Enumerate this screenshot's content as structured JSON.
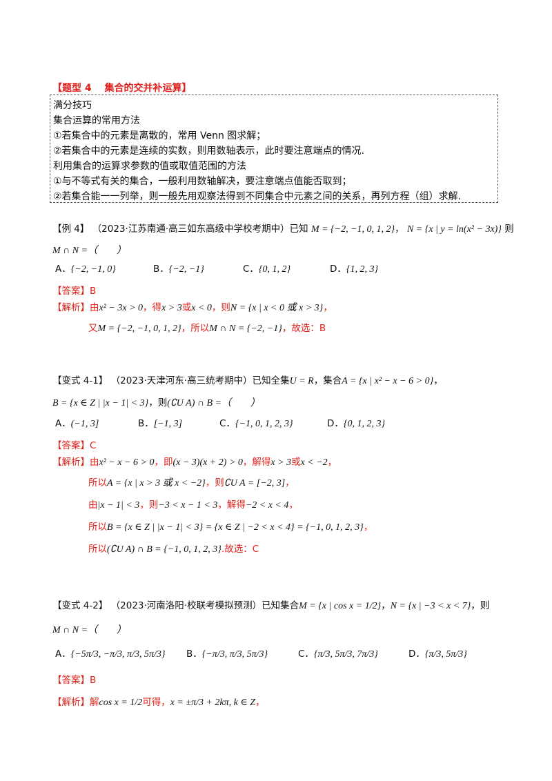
{
  "section": {
    "title": "【题型 4　 集合的交并补运算】"
  },
  "tips": {
    "lines": [
      "满分技巧",
      "集合运算的常用方法",
      "①若集合中的元素是离散的，常用 Venn 图求解；",
      "②若集合中的元素是连续的实数，则用数轴表示，此时要注意端点的情况.",
      "利用集合的运算求参数的值或取值范围的方法",
      "①与不等式有关的集合，一般利用数轴解决，要注意端点值能否取到；",
      "②若集合能一一列举，则一般先用观察法得到不同集合中元素之间的关系，再列方程（组）求解."
    ]
  },
  "example4": {
    "label": "【例 4】",
    "source": "（2023·江苏南通·高三如东高级中学校考期中）已知",
    "set_m": "M = {−2, −1, 0, 1, 2}",
    "sep": "，",
    "set_n": "N = {x | y = ln(x² − 3x)}",
    "then": "则",
    "question": "M ∩ N =（　　）",
    "options": [
      {
        "letter": "A．",
        "text": "{−2, −1, 0}"
      },
      {
        "letter": "B．",
        "text": "{−2, −1}"
      },
      {
        "letter": "C．",
        "text": "{0, 1, 2}"
      },
      {
        "letter": "D．",
        "text": "{1, 2, 3}"
      }
    ],
    "answer_label": "【答案】",
    "answer": "B",
    "analysis_label": "【解析】",
    "analysis_lines": [
      [
        "由",
        "x² − 3x > 0",
        "，得",
        "x > 3",
        "或",
        "x < 0",
        "，则",
        "N = {x | x < 0 或 x > 3}",
        "，"
      ],
      [
        "又",
        "M = {−2, −1, 0, 1, 2}",
        "，所以",
        "M ∩ N = {−2, −1}",
        "，故选：B"
      ]
    ]
  },
  "variant41": {
    "label": "【变式 4-1】",
    "source": "（2023·天津河东·高三统考期中）已知全集",
    "universe": "U = R",
    "set_a_pre": "，集合",
    "set_a": "A = {x | x² − x − 6 > 0}",
    "end": "，",
    "set_b": "B = {x ∈ Z | |x − 1| < 3}",
    "then": "，则",
    "question": "(∁U A) ∩ B =（　　）",
    "options": [
      {
        "letter": "A．",
        "text": "(−1, 3]"
      },
      {
        "letter": "B．",
        "text": "[−1, 3]"
      },
      {
        "letter": "C．",
        "text": "{−1, 0, 1, 2, 3}"
      },
      {
        "letter": "D．",
        "text": "{0, 1, 2, 3}"
      }
    ],
    "answer_label": "【答案】",
    "answer": "C",
    "analysis_label": "【解析】",
    "analysis_lines": [
      [
        "由",
        "x² − x − 6 > 0",
        "，即",
        "(x − 3)(x + 2) > 0",
        "，解得",
        "x > 3",
        "或",
        "x < −2",
        "，"
      ],
      [
        "所以",
        "A = {x | x > 3 或 x < −2}",
        "，则",
        "∁U A = [−2, 3]",
        "，"
      ],
      [
        "由",
        "|x − 1| < 3",
        "，则",
        "−3 < x − 1 < 3",
        "，解得",
        "−2 < x < 4",
        "，"
      ],
      [
        "所以",
        "B = {x ∈ Z | |x − 1| < 3} = {x ∈ Z | −2 < x < 4} = {−1, 0, 1, 2, 3}",
        "，"
      ],
      [
        "所以",
        "(∁U A) ∩ B = {−1, 0, 1, 2, 3}",
        ".故选：C"
      ]
    ]
  },
  "variant42": {
    "label": "【变式 4-2】",
    "source": "（2023·河南洛阳·校联考模拟预测）已知集合",
    "set_m": "M = {x | cos x = 1/2}",
    "sep": "，",
    "set_n": "N = {x | −3 < x < 7}",
    "then": "，则",
    "question": "M ∩ N =（　　）",
    "options": [
      {
        "letter": "A．",
        "text": "{−5π/3, −π/3, π/3, 5π/3}"
      },
      {
        "letter": "B．",
        "text": "{−π/3, π/3, 5π/3}"
      },
      {
        "letter": "C．",
        "text": "{π/3, 5π/3, 7π/3}"
      },
      {
        "letter": "D．",
        "text": "{π/3, 5π/3}"
      }
    ],
    "answer_label": "【答案】",
    "answer": "B",
    "analysis_label": "【解析】",
    "analysis_lines": [
      [
        "解",
        "cos x = 1/2",
        "可得，",
        "x = ±π/3 + 2kπ, k ∈ Z",
        "，"
      ]
    ]
  }
}
